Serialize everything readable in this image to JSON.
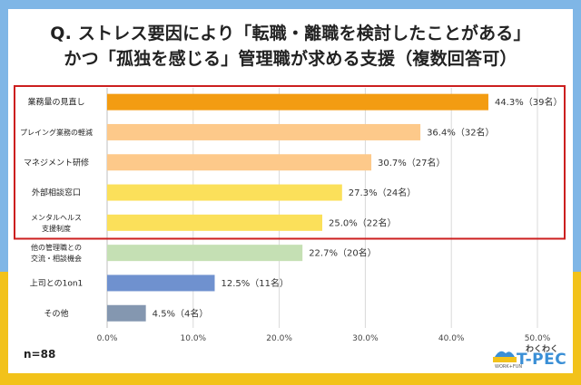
{
  "title_line1": "Q. ストレス要因により「転職・離職を検討したことがある」",
  "title_line2": "かつ「孤独を感じる」管理職が求める支援（複数回答可）",
  "sample_label": "n=88",
  "logo": {
    "top": "わくわく",
    "main": "T-PEC",
    "sub": "WORK+FUN"
  },
  "highlight_color": "#cc1f1f",
  "chart_data": {
    "type": "bar",
    "orientation": "horizontal",
    "title": "",
    "xlabel": "",
    "ylabel": "",
    "xlim": [
      0,
      50
    ],
    "x_ticks": [
      "0.0%",
      "10.0%",
      "20.0%",
      "30.0%",
      "40.0%",
      "50.0%"
    ],
    "x_tick_values": [
      0,
      10,
      20,
      30,
      40,
      50
    ],
    "grid": true,
    "highlight_first_n": 5,
    "categories": [
      [
        "業務量の見直し"
      ],
      [
        "プレイング業務の軽減"
      ],
      [
        "マネジメント研修"
      ],
      [
        "外部相談窓口"
      ],
      [
        "メンタルヘルス",
        "支援制度"
      ],
      [
        "他の管理職との",
        "交流・相談機会"
      ],
      [
        "上司との1on1"
      ],
      [
        "その他"
      ]
    ],
    "values": [
      44.3,
      36.4,
      30.7,
      27.3,
      25.0,
      22.7,
      12.5,
      4.5
    ],
    "counts": [
      39,
      32,
      27,
      24,
      22,
      20,
      11,
      4
    ],
    "data_labels": [
      "44.3%（39名）",
      "36.4%（32名）",
      "30.7%（27名）",
      "27.3%（24名）",
      "25.0%（22名）",
      "22.7%（20名）",
      "12.5%（11名）",
      "4.5%（4名）"
    ],
    "colors": [
      "#f39c12",
      "#fdc98a",
      "#fdc98a",
      "#fbe05a",
      "#fbe05a",
      "#c5e0b4",
      "#6f91cf",
      "#8497b0"
    ]
  }
}
